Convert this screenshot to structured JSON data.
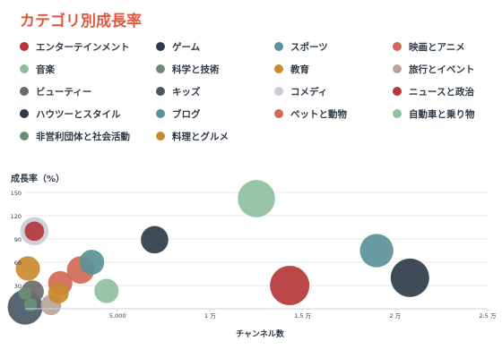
{
  "chart_data": {
    "type": "scatter",
    "title": "カテゴリ別成長率",
    "xlabel": "チャンネル数",
    "ylabel": "成長率（%）",
    "xlim": [
      0,
      25000
    ],
    "ylim": [
      0,
      150
    ],
    "x_ticks": [
      {
        "value": 5000,
        "label": "5,000"
      },
      {
        "value": 10000,
        "label": "1 万"
      },
      {
        "value": 15000,
        "label": "1.5 万"
      },
      {
        "value": 20000,
        "label": "2 万"
      },
      {
        "value": 25000,
        "label": "2.5 万"
      }
    ],
    "y_ticks": [
      {
        "value": 30,
        "label": "30"
      },
      {
        "value": 60,
        "label": "60"
      },
      {
        "value": 90,
        "label": "90"
      },
      {
        "value": 120,
        "label": "120"
      },
      {
        "value": 150,
        "label": "150"
      }
    ],
    "grid": true,
    "legend_position": "top",
    "series": [
      {
        "name": "エンターテインメント",
        "color": "#b5373a",
        "x": 14300,
        "y": 30,
        "size": 1
      },
      {
        "name": "ゲーム",
        "color": "#2f3c48",
        "x": 20800,
        "y": 40,
        "size": 0.95
      },
      {
        "name": "スポーツ",
        "color": "#5a9299",
        "x": 19000,
        "y": 75,
        "size": 0.68
      },
      {
        "name": "映画とアニメ",
        "color": "#d06a55",
        "x": 3000,
        "y": 50,
        "size": 0.42
      },
      {
        "name": "音楽",
        "color": "#8fbf9f",
        "x": 12500,
        "y": 142,
        "size": 0.88
      },
      {
        "name": "科学と技術",
        "color": "#6a8f76",
        "x": 300,
        "y": 5,
        "size": 0.05
      },
      {
        "name": "教育",
        "color": "#c98a2e",
        "x": 150,
        "y": 52,
        "size": 0.31
      },
      {
        "name": "旅行とイベント",
        "color": "#b8a39a",
        "x": 1400,
        "y": 5,
        "size": 0.2
      },
      {
        "name": "ビューティー",
        "color": "#6b6b6b",
        "x": 400,
        "y": 22,
        "size": 0.26
      },
      {
        "name": "キッズ",
        "color": "#4a5866",
        "x": 0,
        "y": 2,
        "size": 0.75
      },
      {
        "name": "コメディ",
        "color": "#c8ced6",
        "x": 500,
        "y": 100,
        "size": 0.45
      },
      {
        "name": "ニュースと政治",
        "color": "#b5373a",
        "x": 500,
        "y": 100,
        "size": 0.17
      },
      {
        "name": "ハウツーとスタイル",
        "color": "#2f3c48",
        "x": 7000,
        "y": 89,
        "size": 0.42
      },
      {
        "name": "ブログ",
        "color": "#5a9299",
        "x": 3600,
        "y": 60,
        "size": 0.33
      },
      {
        "name": "ペットと動物",
        "color": "#d06a55",
        "x": 1900,
        "y": 33,
        "size": 0.31
      },
      {
        "name": "自動車と乗り物",
        "color": "#8fbf9f",
        "x": 4400,
        "y": 23,
        "size": 0.31
      },
      {
        "name": "非営利団体と社会活動",
        "color": "#6a8f76",
        "x": 0,
        "y": 20,
        "size": 0.05
      },
      {
        "name": "料理とグルメ",
        "color": "#c98a2e",
        "x": 1800,
        "y": 20,
        "size": 0.2
      }
    ]
  }
}
